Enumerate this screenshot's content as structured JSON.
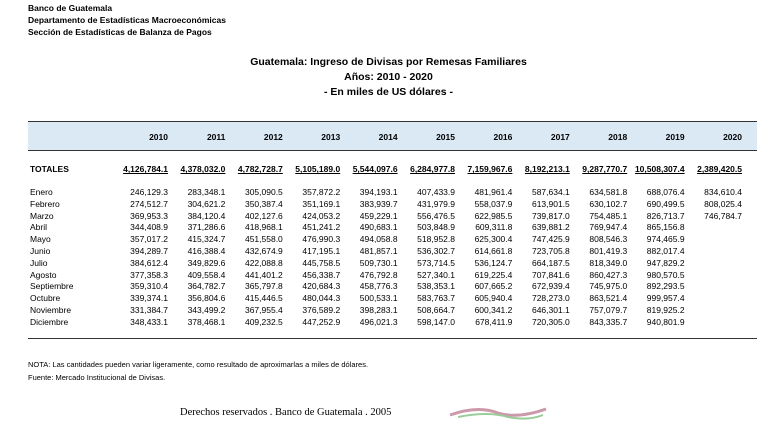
{
  "header": {
    "lines": [
      "Banco de Guatemala",
      "Departamento de Estadísticas Macroeconómicas",
      "Sección de Estadísticas de Balanza de Pagos"
    ]
  },
  "title": {
    "lines": [
      "Guatemala: Ingreso de Divisas por Remesas Familiares",
      "Años: 2010 - 2020",
      "- En miles de US dólares -"
    ]
  },
  "table": {
    "columns": [
      "2010",
      "2011",
      "2012",
      "2013",
      "2014",
      "2015",
      "2016",
      "2017",
      "2018",
      "2019",
      "2020"
    ],
    "totals": {
      "label": "TOTALES",
      "values": [
        "4,126,784.1",
        "4,378,032.0",
        "4,782,728.7",
        "5,105,189.0",
        "5,544,097.6",
        "6,284,977.8",
        "7,159,967.6",
        "8,192,213.1",
        "9,287,770.7",
        "10,508,307.4",
        "2,389,420.5"
      ]
    },
    "rows": [
      [
        "Enero",
        "246,129.3",
        "283,348.1",
        "305,090.5",
        "357,872.2",
        "394,193.1",
        "407,433.9",
        "481,961.4",
        "587,634.1",
        "634,581.8",
        "688,076.4",
        "834,610.4"
      ],
      [
        "Febrero",
        "274,512.7",
        "304,621.2",
        "350,387.4",
        "351,169.1",
        "383,939.7",
        "431,979.9",
        "558,037.9",
        "613,901.5",
        "630,102.7",
        "690,499.5",
        "808,025.4"
      ],
      [
        "Marzo",
        "369,953.3",
        "384,120.4",
        "402,127.6",
        "424,053.2",
        "459,229.1",
        "556,476.5",
        "622,985.5",
        "739,817.0",
        "754,485.1",
        "826,713.7",
        "746,784.7"
      ],
      [
        "Abril",
        "344,408.9",
        "371,286.6",
        "418,968.1",
        "451,241.2",
        "490,683.1",
        "503,848.9",
        "609,311.8",
        "639,881.2",
        "769,947.4",
        "865,156.8"
      ],
      [
        "Mayo",
        "357,017.2",
        "415,324.7",
        "451,558.0",
        "476,990.3",
        "494,058.8",
        "518,952.8",
        "625,300.4",
        "747,425.9",
        "808,546.3",
        "974,465.9"
      ],
      [
        "Junio",
        "394,289.7",
        "416,388.4",
        "432,674.9",
        "417,195.1",
        "481,857.1",
        "536,302.7",
        "614,661.8",
        "723,705.8",
        "801,419.3",
        "882,017.4"
      ],
      [
        "Julio",
        "384,612.4",
        "349,829.6",
        "422,088.8",
        "445,758.5",
        "509,730.1",
        "573,714.5",
        "536,124.7",
        "664,187.5",
        "818,349.0",
        "947,829.2"
      ],
      [
        "Agosto",
        "377,358.3",
        "409,558.4",
        "441,401.2",
        "456,338.7",
        "476,792.8",
        "527,340.1",
        "619,225.4",
        "707,841.6",
        "860,427.3",
        "980,570.5"
      ],
      [
        "Septiembre",
        "359,310.4",
        "364,782.7",
        "365,797.8",
        "420,684.3",
        "458,776.3",
        "538,353.1",
        "607,665.2",
        "672,939.4",
        "745,975.0",
        "892,293.5"
      ],
      [
        "Octubre",
        "339,374.1",
        "356,804.6",
        "415,446.5",
        "480,044.3",
        "500,533.1",
        "583,763.7",
        "605,940.4",
        "728,273.0",
        "863,521.4",
        "999,957.4"
      ],
      [
        "Noviembre",
        "331,384.7",
        "343,499.2",
        "367,955.4",
        "376,589.2",
        "398,283.1",
        "508,664.7",
        "600,341.2",
        "646,301.1",
        "757,079.7",
        "819,925.2"
      ],
      [
        "Diciembre",
        "348,433.1",
        "378,468.1",
        "409,232.5",
        "447,252.9",
        "496,021.3",
        "598,147.0",
        "678,411.9",
        "720,305.0",
        "843,335.7",
        "940,801.9"
      ]
    ]
  },
  "notes": [
    "NOTA: Las cantidades pueden variar ligeramente, como resultado de aproximarlas a miles de dólares.",
    "Fuente: Mercado Institucional de Divisas."
  ],
  "footer": "Derechos reservados . Banco de Guatemala . 2005"
}
